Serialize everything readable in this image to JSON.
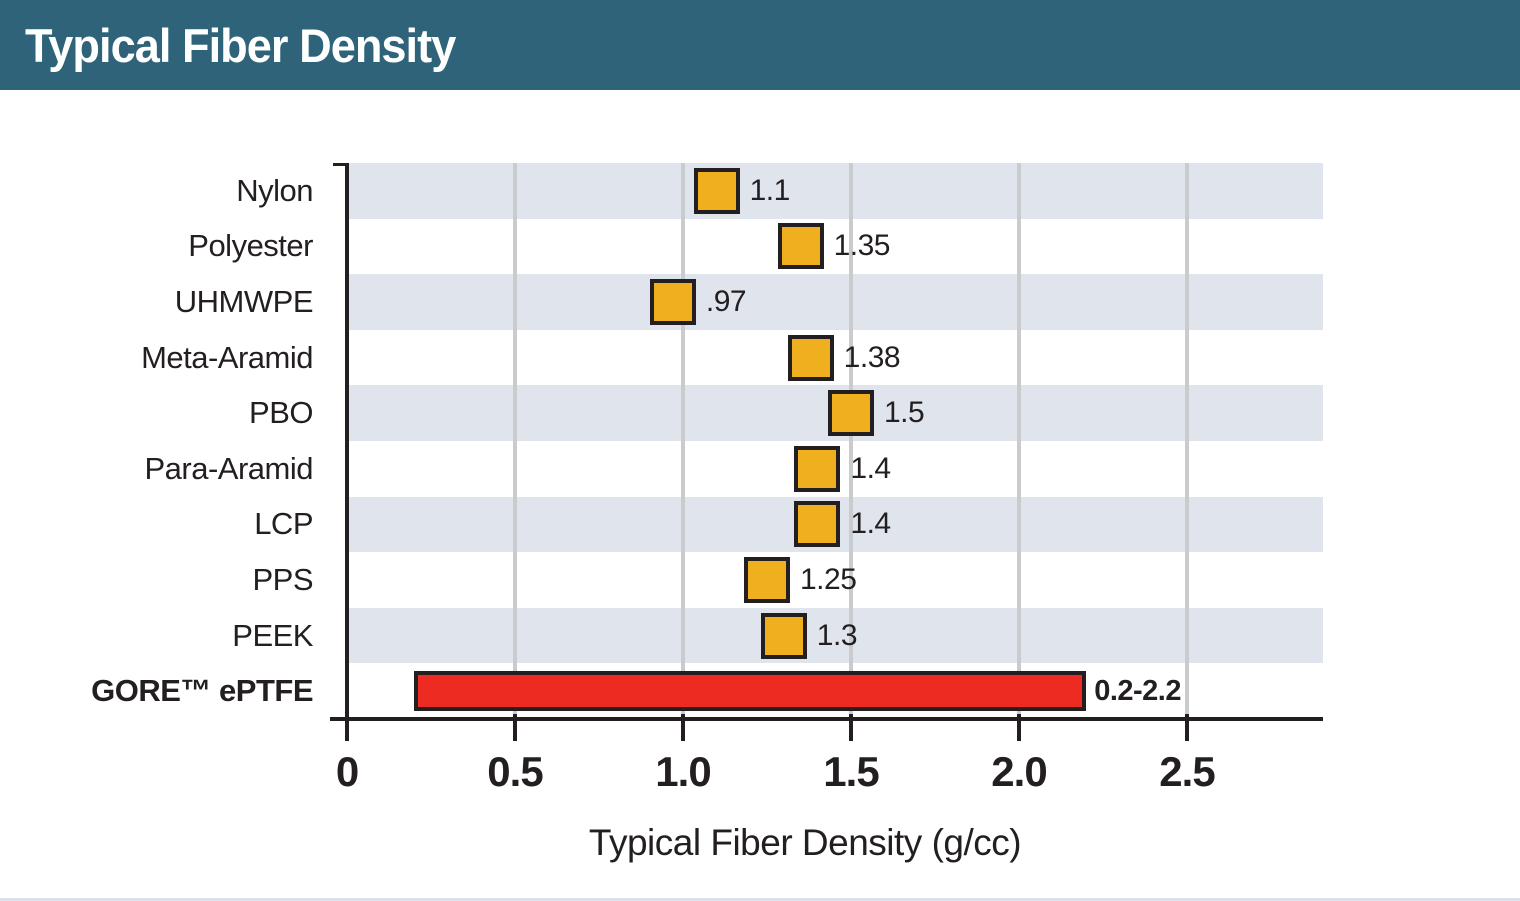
{
  "header": {
    "title": "Typical Fiber Density",
    "background_color": "#2E6379",
    "text_color": "#FFFFFF"
  },
  "chart_data": {
    "type": "bar",
    "orientation": "horizontal",
    "xlabel": "Typical Fiber Density (g/cc)",
    "xlim": [
      0,
      2.9
    ],
    "grid": "vertical",
    "gridline_values": [
      0.5,
      1.0,
      1.5,
      2.0,
      2.5
    ],
    "x_ticks": [
      {
        "value": 0,
        "label": "0"
      },
      {
        "value": 0.5,
        "label": "0.5"
      },
      {
        "value": 1.0,
        "label": "1.0"
      },
      {
        "value": 1.5,
        "label": "1.5"
      },
      {
        "value": 2.0,
        "label": "2.0"
      },
      {
        "value": 2.5,
        "label": "2.5"
      }
    ],
    "rows": [
      {
        "label": "Nylon",
        "marker": "square",
        "value": 1.1,
        "value_label": "1.1",
        "shaded": true,
        "bold": false
      },
      {
        "label": "Polyester",
        "marker": "square",
        "value": 1.35,
        "value_label": "1.35",
        "shaded": false,
        "bold": false
      },
      {
        "label": "UHMWPE",
        "marker": "square",
        "value": 0.97,
        "value_label": ".97",
        "shaded": true,
        "bold": false
      },
      {
        "label": "Meta-Aramid",
        "marker": "square",
        "value": 1.38,
        "value_label": "1.38",
        "shaded": false,
        "bold": false
      },
      {
        "label": "PBO",
        "marker": "square",
        "value": 1.5,
        "value_label": "1.5",
        "shaded": true,
        "bold": false
      },
      {
        "label": "Para-Aramid",
        "marker": "square",
        "value": 1.4,
        "value_label": "1.4",
        "shaded": false,
        "bold": false
      },
      {
        "label": "LCP",
        "marker": "square",
        "value": 1.4,
        "value_label": "1.4",
        "shaded": true,
        "bold": false
      },
      {
        "label": "PPS",
        "marker": "square",
        "value": 1.25,
        "value_label": "1.25",
        "shaded": false,
        "bold": false
      },
      {
        "label": "PEEK",
        "marker": "square",
        "value": 1.3,
        "value_label": "1.3",
        "shaded": true,
        "bold": false
      },
      {
        "label": "GORE™ ePTFE",
        "marker": "bar",
        "range": [
          0.2,
          2.2
        ],
        "value_label": "0.2-2.2",
        "shaded": false,
        "bold": true
      }
    ],
    "colors": {
      "marker_fill": "#F0AF1E",
      "marker_border": "#231F20",
      "bar_fill": "#EE2B23",
      "bar_border": "#231F20",
      "band": "#DFE4ED",
      "gridline": "#C9CBCD",
      "axis": "#231F20",
      "text": "#231F20",
      "bottom_strip": "#D9E1EA"
    }
  }
}
